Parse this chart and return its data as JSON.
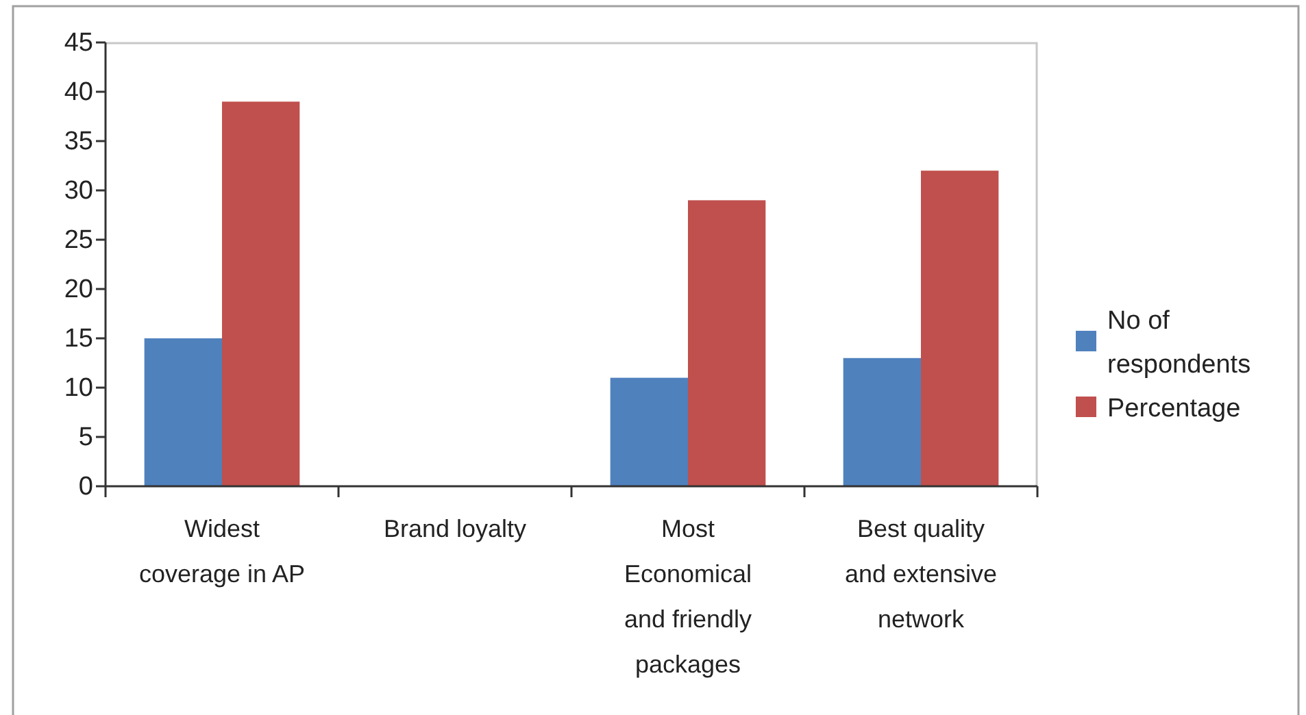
{
  "chart_data": {
    "type": "bar",
    "categories": [
      "Widest coverage in AP",
      "Brand loyalty",
      "Most Economical and friendly packages",
      "Best quality and extensive network"
    ],
    "series": [
      {
        "name": "No of respondents",
        "color": "#4f81bd",
        "values": [
          15,
          null,
          11,
          13
        ]
      },
      {
        "name": "Percentage",
        "color": "#c0504d",
        "values": [
          39,
          null,
          29,
          32
        ]
      }
    ],
    "ylim": [
      0,
      45
    ],
    "yticks": [
      0,
      5,
      10,
      15,
      20,
      25,
      30,
      35,
      40,
      45
    ],
    "legend": "right"
  }
}
